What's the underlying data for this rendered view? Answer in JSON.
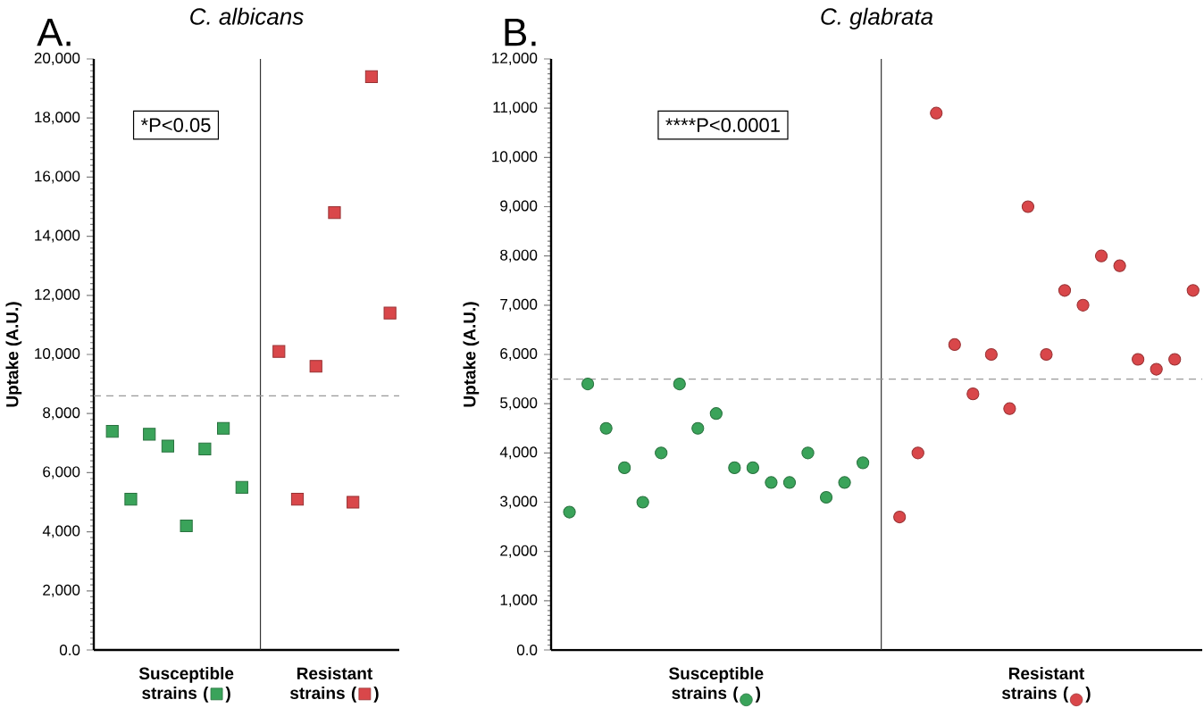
{
  "chart_data": [
    {
      "type": "scatter",
      "title": "C. albicans",
      "ylabel": "Uptake (A.U.)",
      "marker": "square",
      "annotations": [
        "A.",
        "*P<0.05"
      ],
      "categories": [
        null,
        null,
        null,
        null,
        "Susceptible strains (   )",
        null,
        null,
        null,
        null,
        null,
        null,
        null,
        "Resistant strains (   )",
        null,
        null,
        null
      ],
      "ylim": [
        0,
        20000
      ],
      "yticks": [
        {
          "value": 0,
          "label": "0.0"
        },
        {
          "value": 2000,
          "label": "2,000"
        },
        {
          "value": 4000,
          "label": "4,000"
        },
        {
          "value": 6000,
          "label": "6,000"
        },
        {
          "value": 8000,
          "label": "8,000"
        },
        {
          "value": 10000,
          "label": "10,000"
        },
        {
          "value": 12000,
          "label": "12,000"
        },
        {
          "value": 14000,
          "label": "14,000"
        },
        {
          "value": 16000,
          "label": "16,000"
        },
        {
          "value": 18000,
          "label": "18,000"
        },
        {
          "value": 20000,
          "label": "20,000"
        }
      ],
      "ref_lines": [
        {
          "axis": "y",
          "value": 8600,
          "color": "#999999",
          "line_style": "dashed"
        }
      ],
      "series": [
        {
          "color": "#3aa35a",
          "values": [
            7400,
            5100,
            7300,
            6900,
            4200,
            6800,
            7500,
            5500,
            null,
            null,
            null,
            null,
            null,
            null,
            null,
            null
          ]
        },
        {
          "color": "#d9474a",
          "values": [
            null,
            null,
            null,
            null,
            null,
            null,
            null,
            null,
            null,
            10100,
            5100,
            9600,
            14800,
            5000,
            19400,
            11400
          ]
        }
      ]
    },
    {
      "type": "scatter",
      "title": "C. glabrata",
      "ylabel": "Uptake (A.U.)",
      "marker": "circle",
      "annotations": [
        "B.",
        "****P<0.0001"
      ],
      "categories": [
        null,
        null,
        null,
        null,
        null,
        null,
        null,
        null,
        "Susceptible strains (   )",
        null,
        null,
        null,
        null,
        null,
        null,
        null,
        null,
        null,
        null,
        null,
        null,
        null,
        null,
        null,
        null,
        null,
        "Resistant strains (   )",
        null,
        null,
        null,
        null,
        null,
        null,
        null,
        null
      ],
      "ylim": [
        0,
        12000
      ],
      "yticks": [
        {
          "value": 0,
          "label": "0.0"
        },
        {
          "value": 1000,
          "label": "1,000"
        },
        {
          "value": 2000,
          "label": "2,000"
        },
        {
          "value": 3000,
          "label": "3,000"
        },
        {
          "value": 4000,
          "label": "4,000"
        },
        {
          "value": 5000,
          "label": "5,000"
        },
        {
          "value": 6000,
          "label": "6,000"
        },
        {
          "value": 7000,
          "label": "7,000"
        },
        {
          "value": 8000,
          "label": "8,000"
        },
        {
          "value": 9000,
          "label": "9,000"
        },
        {
          "value": 10000,
          "label": "10,000"
        },
        {
          "value": 11000,
          "label": "11,000"
        },
        {
          "value": 12000,
          "label": "12,000"
        }
      ],
      "ref_lines": [
        {
          "axis": "y",
          "value": 5500,
          "color": "#999999",
          "line_style": "dashed"
        }
      ],
      "series": [
        {
          "color": "#3aa35a",
          "values": [
            2800,
            5400,
            4500,
            3700,
            3000,
            4000,
            5400,
            4500,
            4800,
            3700,
            3700,
            3400,
            3400,
            4000,
            3100,
            3400,
            3800,
            null,
            null,
            null,
            null,
            null,
            null,
            null,
            null,
            null,
            null,
            null,
            null,
            null,
            null,
            null,
            null,
            null,
            null
          ]
        },
        {
          "color": "#d9474a",
          "values": [
            null,
            null,
            null,
            null,
            null,
            null,
            null,
            null,
            null,
            null,
            null,
            null,
            null,
            null,
            null,
            null,
            null,
            null,
            2700,
            4000,
            10900,
            6200,
            5200,
            6000,
            4900,
            9000,
            6000,
            7300,
            7000,
            8000,
            7800,
            5900,
            5700,
            5900,
            7300
          ]
        }
      ]
    }
  ]
}
